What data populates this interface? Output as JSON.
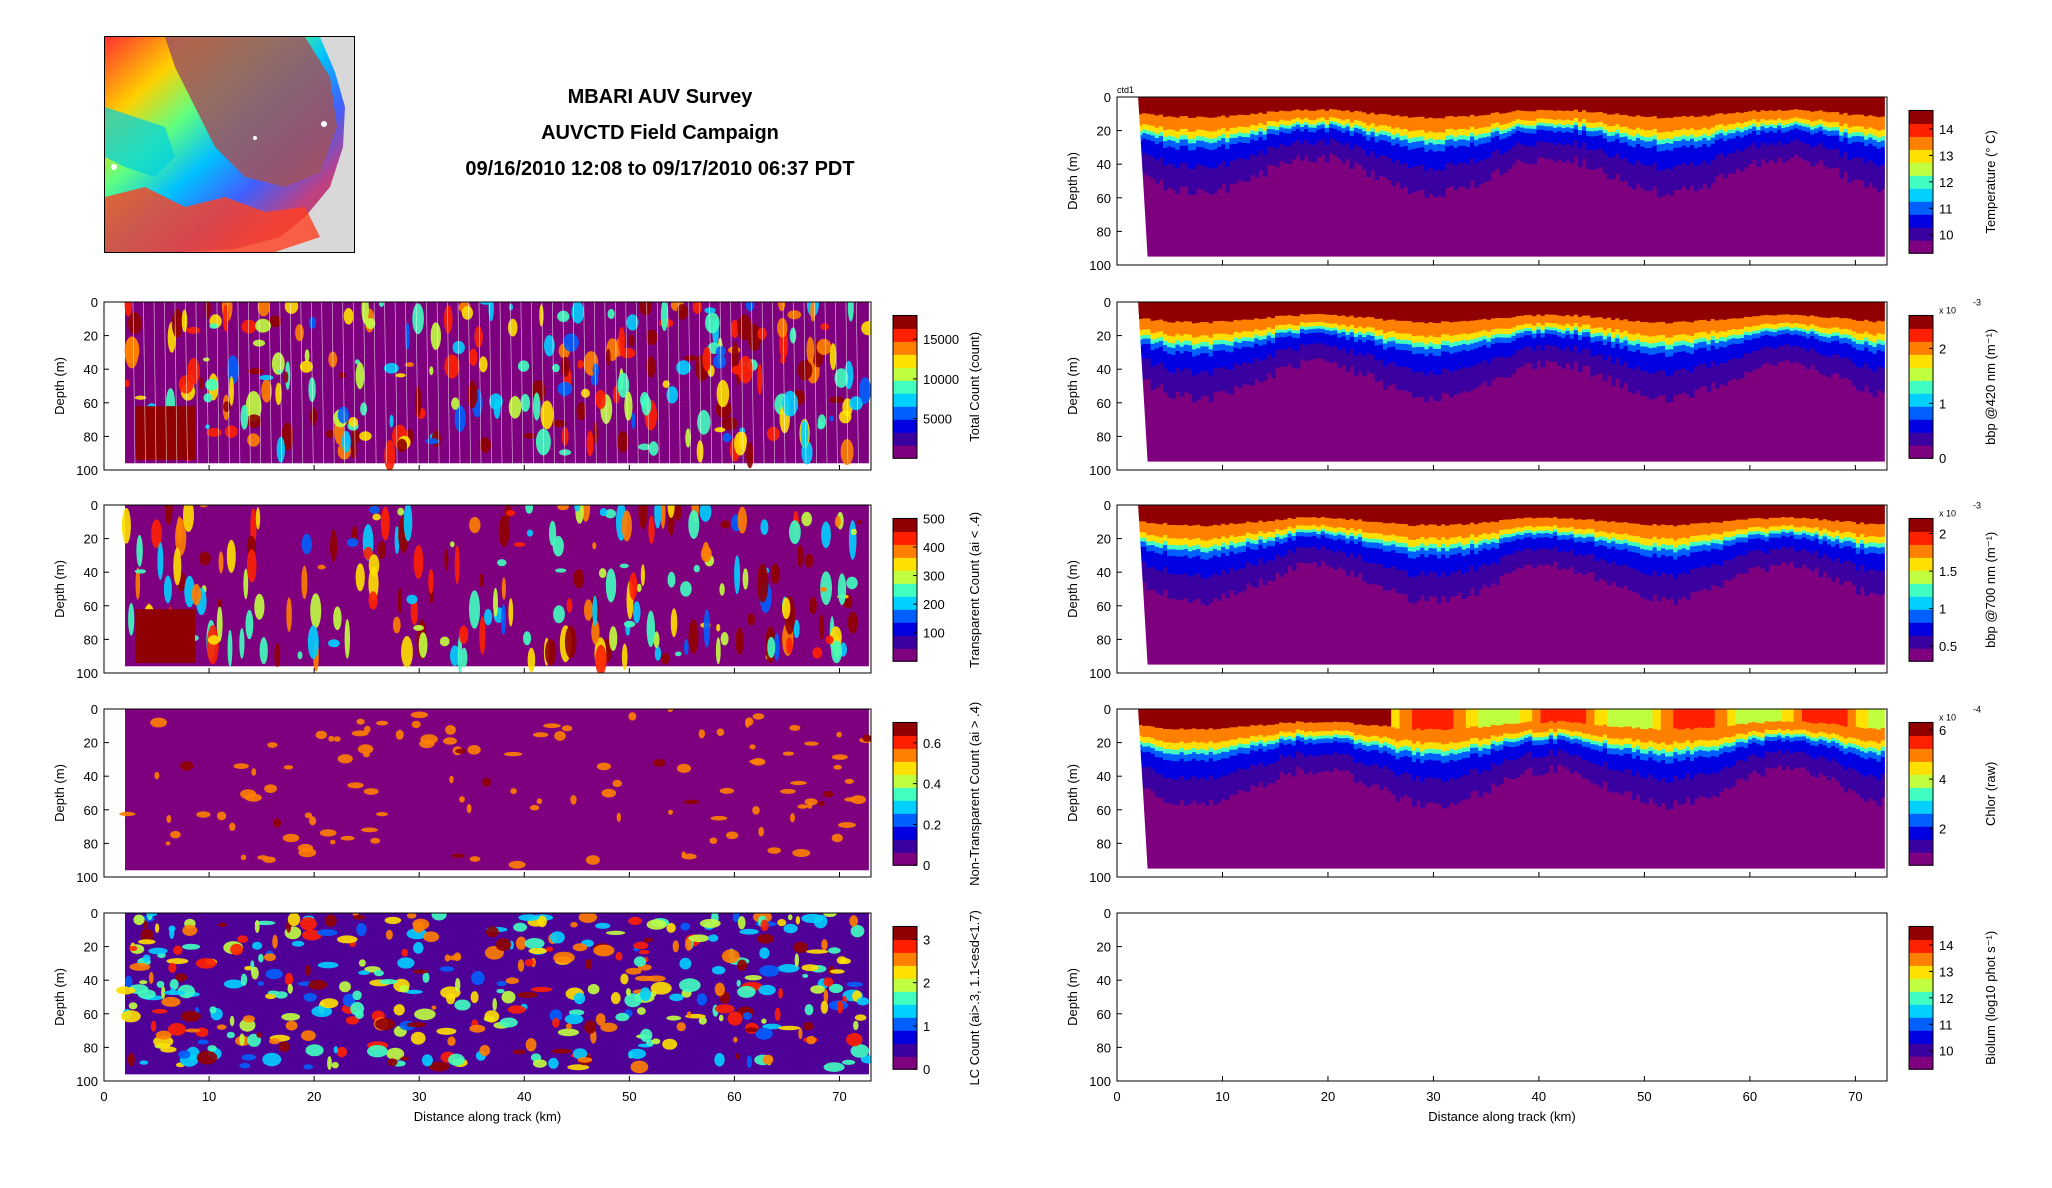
{
  "header": {
    "line1": "MBARI AUV Survey",
    "line2": "AUVCTD Field Campaign",
    "line3": "09/16/2010 12:08 to 09/17/2010 06:37 PDT"
  },
  "map": {
    "icon": "bathymetry-map-icon"
  },
  "axes": {
    "depth_label": "Depth (m)",
    "distance_label": "Distance along track (km)",
    "depth_ticks": [
      "0",
      "20",
      "40",
      "60",
      "80",
      "100"
    ],
    "distance_ticks": [
      "0",
      "10",
      "20",
      "30",
      "40",
      "50",
      "60",
      "70"
    ],
    "depth_range": [
      0,
      100
    ],
    "distance_range": [
      0,
      73
    ]
  },
  "colors": {
    "jet": [
      "#7f007f",
      "#3a00a0",
      "#0000e0",
      "#0060ff",
      "#00d0ff",
      "#40ffc0",
      "#c0ff40",
      "#ffe000",
      "#ff8000",
      "#ff2000",
      "#900000"
    ]
  },
  "chart_data": [
    {
      "type": "heatmap",
      "column": "left",
      "row": 0,
      "colorbar_label": "Total Count (count)",
      "cbar_ticks": [
        "5000",
        "10000",
        "15000"
      ],
      "cbar_range": [
        0,
        18000
      ],
      "pattern": "vertical-profiles"
    },
    {
      "type": "heatmap",
      "column": "left",
      "row": 1,
      "colorbar_label": "Transparent Count (ai < .4)",
      "cbar_ticks": [
        "100",
        "200",
        "300",
        "400",
        "500"
      ],
      "cbar_range": [
        0,
        500
      ],
      "pattern": "vertical-streaks"
    },
    {
      "type": "heatmap",
      "column": "left",
      "row": 2,
      "colorbar_label": "Non-Transparent Count (ai > .4)",
      "cbar_ticks": [
        "0",
        "0.2",
        "0.4",
        "0.6"
      ],
      "cbar_range": [
        0,
        0.7
      ],
      "pattern": "sparse-blobs"
    },
    {
      "type": "heatmap",
      "column": "left",
      "row": 3,
      "colorbar_label": "LC Count (ai>.3, 1.1<esd<1.7)",
      "cbar_ticks": [
        "0",
        "1",
        "2",
        "3"
      ],
      "cbar_range": [
        0,
        3.3
      ],
      "pattern": "dense-blobs"
    },
    {
      "type": "heatmap",
      "column": "right",
      "row": -1,
      "top_label": "ctd1",
      "colorbar_label": "Temperature (° C)",
      "cbar_ticks": [
        "10",
        "11",
        "12",
        "13",
        "14"
      ],
      "cbar_range": [
        9.3,
        14.7
      ],
      "pattern": "stratified"
    },
    {
      "type": "heatmap",
      "column": "right",
      "row": 0,
      "cbar_multiplier": "x 10",
      "cbar_exp": "-3",
      "colorbar_label": "bbp @420 nm (m⁻¹)",
      "cbar_ticks": [
        "0",
        "1",
        "2"
      ],
      "cbar_range": [
        0,
        2.6
      ],
      "pattern": "stratified"
    },
    {
      "type": "heatmap",
      "column": "right",
      "row": 1,
      "cbar_multiplier": "x 10",
      "cbar_exp": "-3",
      "colorbar_label": "bbp @700 nm (m⁻¹)",
      "cbar_ticks": [
        "0.5",
        "1",
        "1.5",
        "2"
      ],
      "cbar_range": [
        0.3,
        2.2
      ],
      "pattern": "stratified"
    },
    {
      "type": "heatmap",
      "column": "right",
      "row": 2,
      "cbar_multiplier": "x 10",
      "cbar_exp": "-4",
      "colorbar_label": "Chlor (raw)",
      "cbar_ticks": [
        "2",
        "4",
        "6"
      ],
      "cbar_range": [
        0.5,
        6.3
      ],
      "pattern": "stratified-chlor"
    },
    {
      "type": "heatmap",
      "column": "right",
      "row": 3,
      "colorbar_label": "Biolum (log10 phot s⁻¹)",
      "cbar_ticks": [
        "10",
        "11",
        "12",
        "13",
        "14"
      ],
      "cbar_range": [
        9.3,
        14.7
      ],
      "pattern": "empty"
    }
  ]
}
